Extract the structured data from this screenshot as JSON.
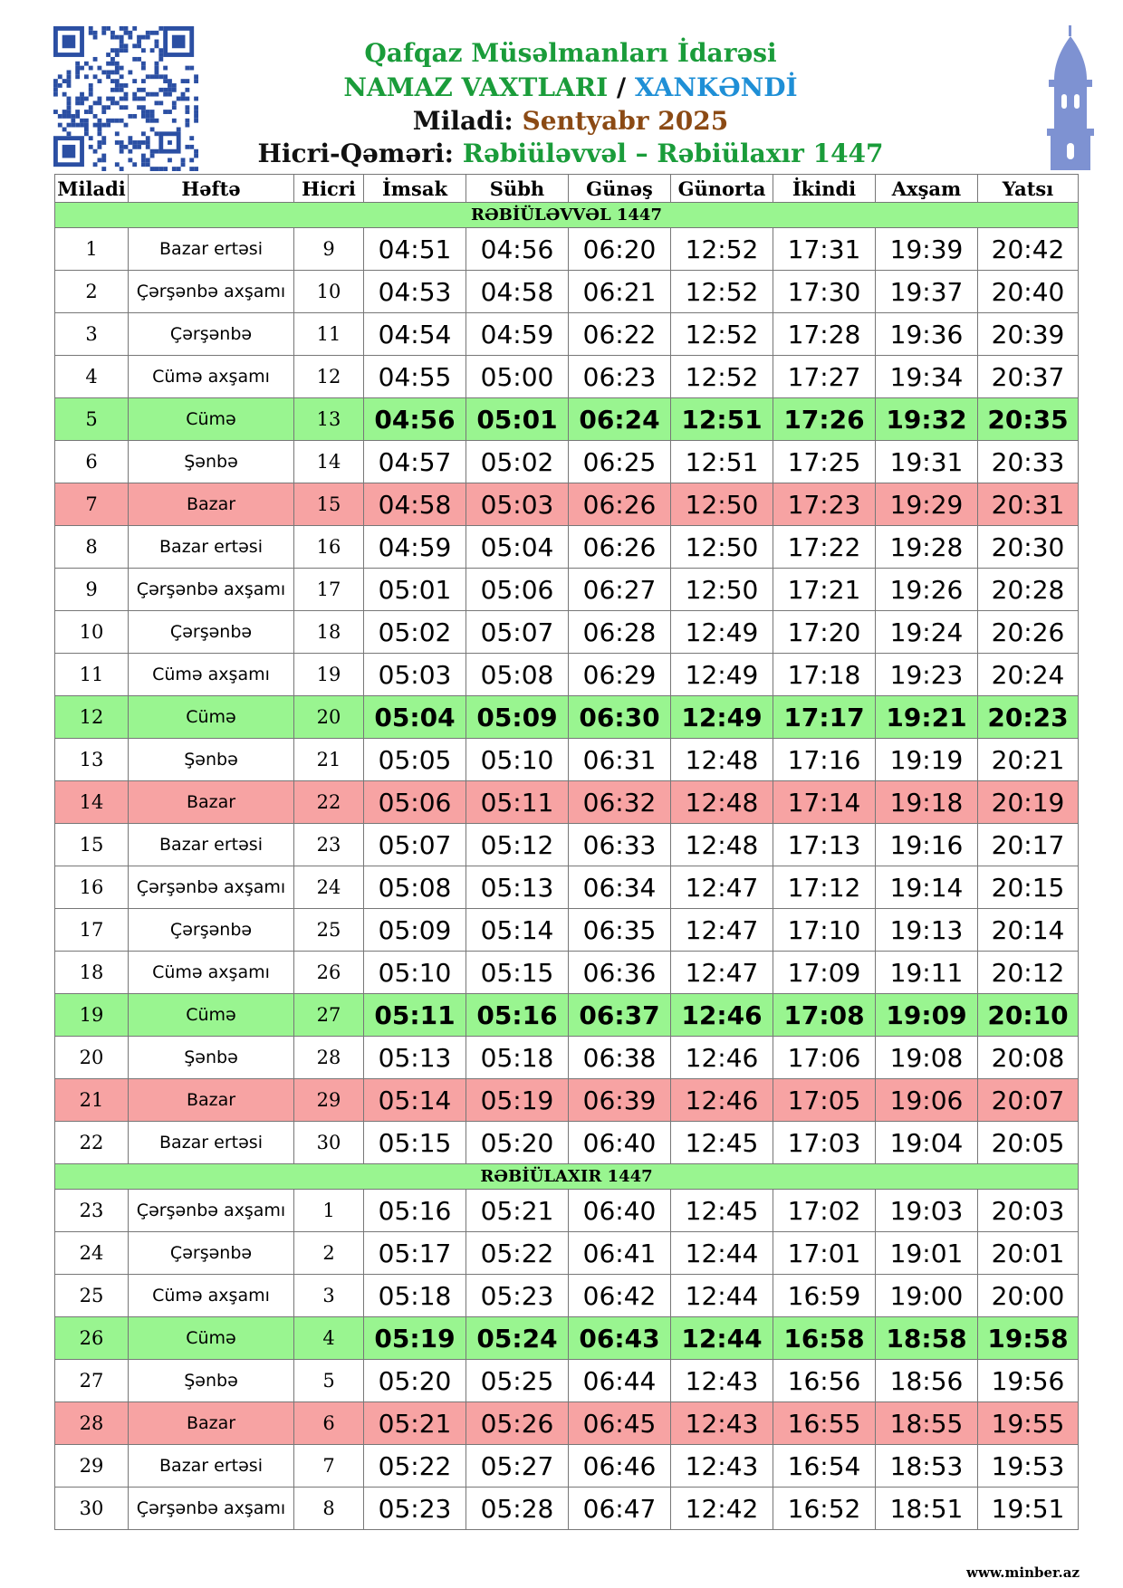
{
  "header": {
    "line1": "Qafqaz Müsəlmanları İdarəsi",
    "line2a": "NAMAZ VAXTLARI",
    "line2sep": "/",
    "line2b": "XANKƏNDİ",
    "miladi_label": "Miladi:",
    "miladi_value": "Sentyabr 2025",
    "hicri_label": "Hicri-Qəməri:",
    "hicri_value": "Rəbiüləvvəl – Rəbiülaxır 1447"
  },
  "table": {
    "columns": [
      "Miladi",
      "Həftə",
      "Hicri",
      "İmsak",
      "Sübh",
      "Günəş",
      "Günorta",
      "İkindi",
      "Axşam",
      "Yatsı"
    ],
    "sections": [
      {
        "title": "RƏBİÜLƏVVƏL 1447",
        "rows": [
          {
            "cells": [
              "1",
              "Bazar ertəsi",
              "9",
              "04:51",
              "04:56",
              "06:20",
              "12:52",
              "17:31",
              "19:39",
              "20:42"
            ]
          },
          {
            "cells": [
              "2",
              "Çərşənbə axşamı",
              "10",
              "04:53",
              "04:58",
              "06:21",
              "12:52",
              "17:30",
              "19:37",
              "20:40"
            ]
          },
          {
            "cells": [
              "3",
              "Çərşənbə",
              "11",
              "04:54",
              "04:59",
              "06:22",
              "12:52",
              "17:28",
              "19:36",
              "20:39"
            ]
          },
          {
            "cells": [
              "4",
              "Cümə axşamı",
              "12",
              "04:55",
              "05:00",
              "06:23",
              "12:52",
              "17:27",
              "19:34",
              "20:37"
            ]
          },
          {
            "cells": [
              "5",
              "Cümə",
              "13",
              "04:56",
              "05:01",
              "06:24",
              "12:51",
              "17:26",
              "19:32",
              "20:35"
            ],
            "color": "#99f590",
            "bold_times": true
          },
          {
            "cells": [
              "6",
              "Şənbə",
              "14",
              "04:57",
              "05:02",
              "06:25",
              "12:51",
              "17:25",
              "19:31",
              "20:33"
            ]
          },
          {
            "cells": [
              "7",
              "Bazar",
              "15",
              "04:58",
              "05:03",
              "06:26",
              "12:50",
              "17:23",
              "19:29",
              "20:31"
            ],
            "color": "#f7a3a3"
          },
          {
            "cells": [
              "8",
              "Bazar ertəsi",
              "16",
              "04:59",
              "05:04",
              "06:26",
              "12:50",
              "17:22",
              "19:28",
              "20:30"
            ]
          },
          {
            "cells": [
              "9",
              "Çərşənbə axşamı",
              "17",
              "05:01",
              "05:06",
              "06:27",
              "12:50",
              "17:21",
              "19:26",
              "20:28"
            ]
          },
          {
            "cells": [
              "10",
              "Çərşənbə",
              "18",
              "05:02",
              "05:07",
              "06:28",
              "12:49",
              "17:20",
              "19:24",
              "20:26"
            ]
          },
          {
            "cells": [
              "11",
              "Cümə axşamı",
              "19",
              "05:03",
              "05:08",
              "06:29",
              "12:49",
              "17:18",
              "19:23",
              "20:24"
            ]
          },
          {
            "cells": [
              "12",
              "Cümə",
              "20",
              "05:04",
              "05:09",
              "06:30",
              "12:49",
              "17:17",
              "19:21",
              "20:23"
            ],
            "color": "#99f590",
            "bold_times": true
          },
          {
            "cells": [
              "13",
              "Şənbə",
              "21",
              "05:05",
              "05:10",
              "06:31",
              "12:48",
              "17:16",
              "19:19",
              "20:21"
            ]
          },
          {
            "cells": [
              "14",
              "Bazar",
              "22",
              "05:06",
              "05:11",
              "06:32",
              "12:48",
              "17:14",
              "19:18",
              "20:19"
            ],
            "color": "#f7a3a3"
          },
          {
            "cells": [
              "15",
              "Bazar ertəsi",
              "23",
              "05:07",
              "05:12",
              "06:33",
              "12:48",
              "17:13",
              "19:16",
              "20:17"
            ]
          },
          {
            "cells": [
              "16",
              "Çərşənbə axşamı",
              "24",
              "05:08",
              "05:13",
              "06:34",
              "12:47",
              "17:12",
              "19:14",
              "20:15"
            ]
          },
          {
            "cells": [
              "17",
              "Çərşənbə",
              "25",
              "05:09",
              "05:14",
              "06:35",
              "12:47",
              "17:10",
              "19:13",
              "20:14"
            ]
          },
          {
            "cells": [
              "18",
              "Cümə axşamı",
              "26",
              "05:10",
              "05:15",
              "06:36",
              "12:47",
              "17:09",
              "19:11",
              "20:12"
            ]
          },
          {
            "cells": [
              "19",
              "Cümə",
              "27",
              "05:11",
              "05:16",
              "06:37",
              "12:46",
              "17:08",
              "19:09",
              "20:10"
            ],
            "color": "#99f590",
            "bold_times": true
          },
          {
            "cells": [
              "20",
              "Şənbə",
              "28",
              "05:13",
              "05:18",
              "06:38",
              "12:46",
              "17:06",
              "19:08",
              "20:08"
            ]
          },
          {
            "cells": [
              "21",
              "Bazar",
              "29",
              "05:14",
              "05:19",
              "06:39",
              "12:46",
              "17:05",
              "19:06",
              "20:07"
            ],
            "color": "#f7a3a3"
          },
          {
            "cells": [
              "22",
              "Bazar ertəsi",
              "30",
              "05:15",
              "05:20",
              "06:40",
              "12:45",
              "17:03",
              "19:04",
              "20:05"
            ]
          }
        ]
      },
      {
        "title": "RƏBİÜLAXIR 1447",
        "rows": [
          {
            "cells": [
              "23",
              "Çərşənbə axşamı",
              "1",
              "05:16",
              "05:21",
              "06:40",
              "12:45",
              "17:02",
              "19:03",
              "20:03"
            ]
          },
          {
            "cells": [
              "24",
              "Çərşənbə",
              "2",
              "05:17",
              "05:22",
              "06:41",
              "12:44",
              "17:01",
              "19:01",
              "20:01"
            ]
          },
          {
            "cells": [
              "25",
              "Cümə axşamı",
              "3",
              "05:18",
              "05:23",
              "06:42",
              "12:44",
              "16:59",
              "19:00",
              "20:00"
            ]
          },
          {
            "cells": [
              "26",
              "Cümə",
              "4",
              "05:19",
              "05:24",
              "06:43",
              "12:44",
              "16:58",
              "18:58",
              "19:58"
            ],
            "color": "#99f590",
            "bold_times": true
          },
          {
            "cells": [
              "27",
              "Şənbə",
              "5",
              "05:20",
              "05:25",
              "06:44",
              "12:43",
              "16:56",
              "18:56",
              "19:56"
            ]
          },
          {
            "cells": [
              "28",
              "Bazar",
              "6",
              "05:21",
              "05:26",
              "06:45",
              "12:43",
              "16:55",
              "18:55",
              "19:55"
            ],
            "color": "#f7a3a3"
          },
          {
            "cells": [
              "29",
              "Bazar ertəsi",
              "7",
              "05:22",
              "05:27",
              "06:46",
              "12:43",
              "16:54",
              "18:53",
              "19:53"
            ]
          },
          {
            "cells": [
              "30",
              "Çərşənbə axşamı",
              "8",
              "05:23",
              "05:28",
              "06:47",
              "12:42",
              "16:52",
              "18:51",
              "19:51"
            ]
          }
        ]
      }
    ]
  },
  "footer": "www.minber.az"
}
